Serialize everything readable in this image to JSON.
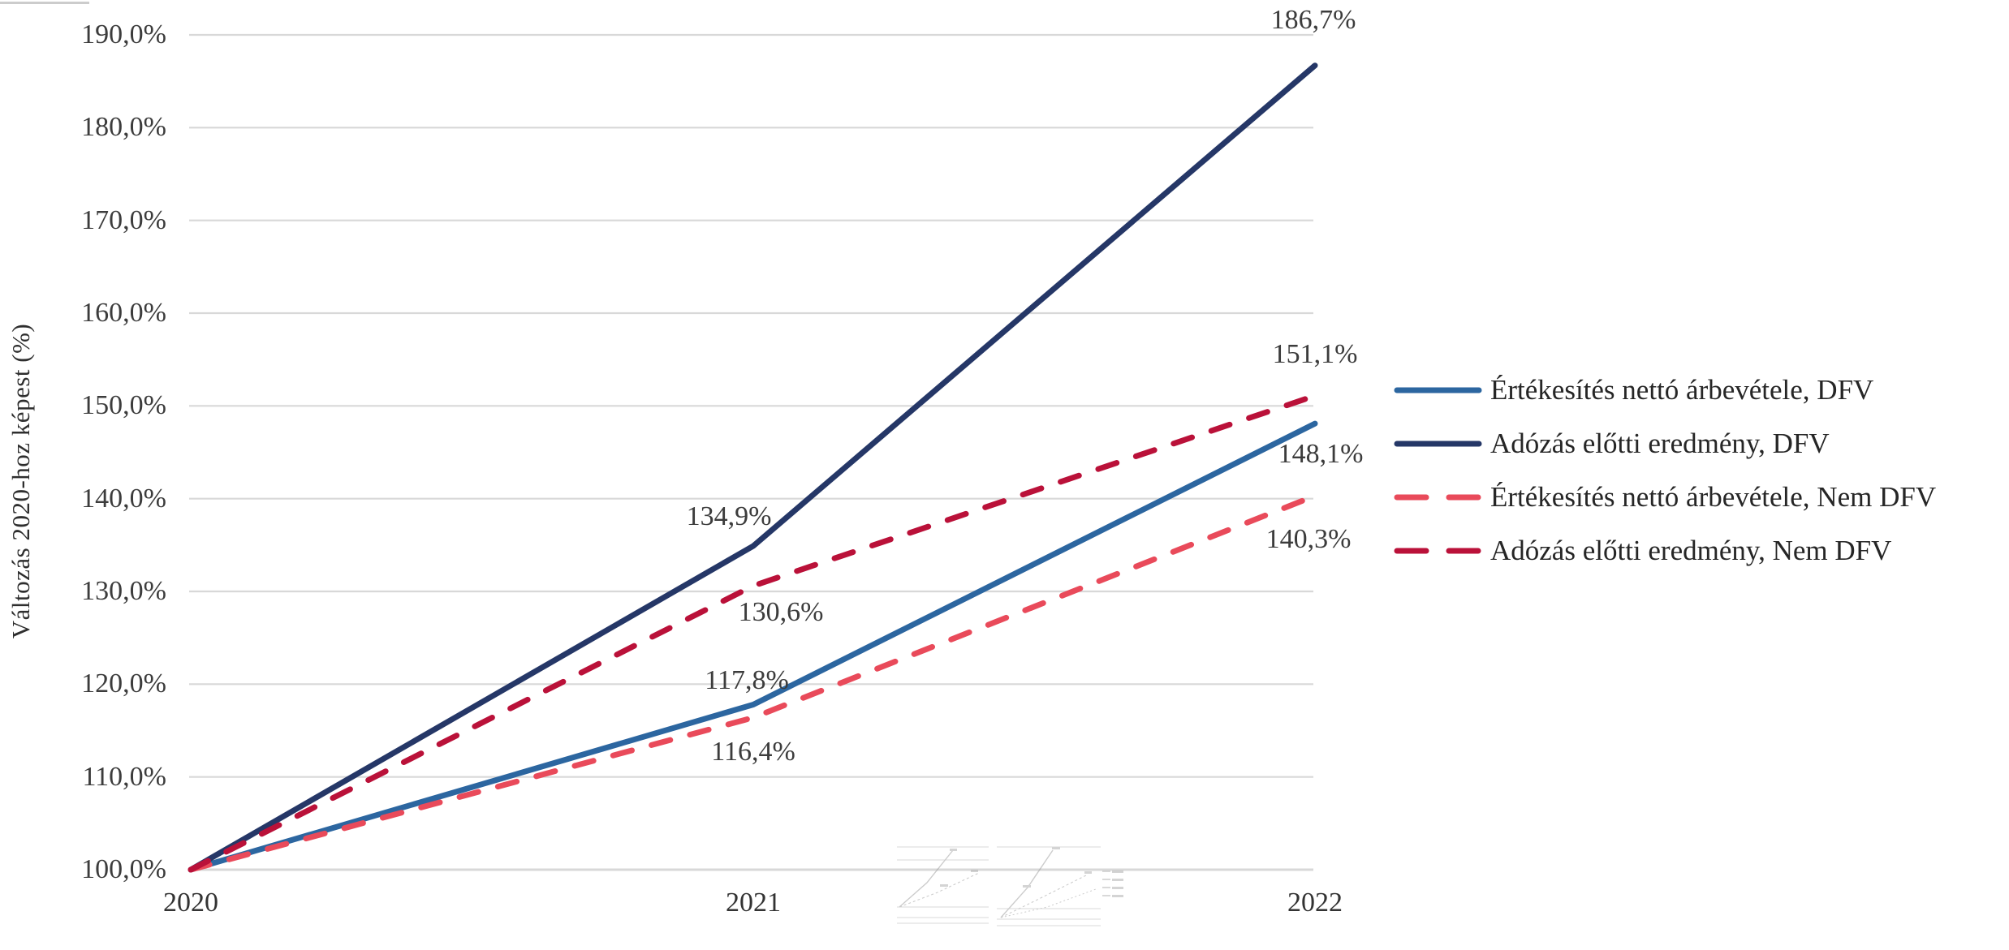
{
  "chart_data": {
    "type": "line",
    "title": "",
    "xlabel": "",
    "ylabel": "Változás 2020-hoz képest (%)",
    "categories": [
      "2020",
      "2021",
      "2022"
    ],
    "ylim": [
      100,
      190
    ],
    "ytick_step": 10,
    "ytick_labels": [
      "100,0%",
      "110,0%",
      "120,0%",
      "130,0%",
      "140,0%",
      "150,0%",
      "160,0%",
      "170,0%",
      "180,0%",
      "190,0%"
    ],
    "grid": "horizontal",
    "gridline_color": "#d8d8d8",
    "legend_position": "right",
    "series": [
      {
        "name": "Értékesítés nettó árbevétele, DFV",
        "values": [
          100.0,
          117.8,
          148.1
        ],
        "color": "#2c66a0",
        "dash": false,
        "point_labels": [
          {
            "index": 1,
            "text": "117,8%",
            "dx": -8,
            "dy": -29
          },
          {
            "index": 2,
            "text": "148,1%",
            "dx": 7,
            "dy": 38
          }
        ]
      },
      {
        "name": "Adózás előtti eredmény, DFV",
        "values": [
          100.0,
          134.9,
          186.7
        ],
        "color": "#253767",
        "dash": false,
        "point_labels": [
          {
            "index": 1,
            "text": "134,9%",
            "dx": -30,
            "dy": -36
          },
          {
            "index": 2,
            "text": "186,7%",
            "dx": -2,
            "dy": -56
          }
        ]
      },
      {
        "name": "Értékesítés nettó árbevétele, Nem DFV",
        "values": [
          100.0,
          116.4,
          140.3
        ],
        "color": "#e94a5a",
        "dash": true,
        "point_labels": [
          {
            "index": 1,
            "text": "116,4%",
            "dx": 0,
            "dy": 43
          },
          {
            "index": 2,
            "text": "140,3%",
            "dx": -8,
            "dy": 54
          }
        ]
      },
      {
        "name": "Adózás előtti eredmény, Nem DFV",
        "values": [
          100.0,
          130.6,
          151.1
        ],
        "color": "#ba1139",
        "dash": true,
        "point_labels": [
          {
            "index": 1,
            "text": "130,6%",
            "dx": 34,
            "dy": 33
          },
          {
            "index": 2,
            "text": "151,1%",
            "dx": 0,
            "dy": -51
          }
        ]
      }
    ]
  },
  "icons": {
    "watermark": "mini-line-charts-ghost",
    "legend_swatch": "line-style-swatch"
  }
}
